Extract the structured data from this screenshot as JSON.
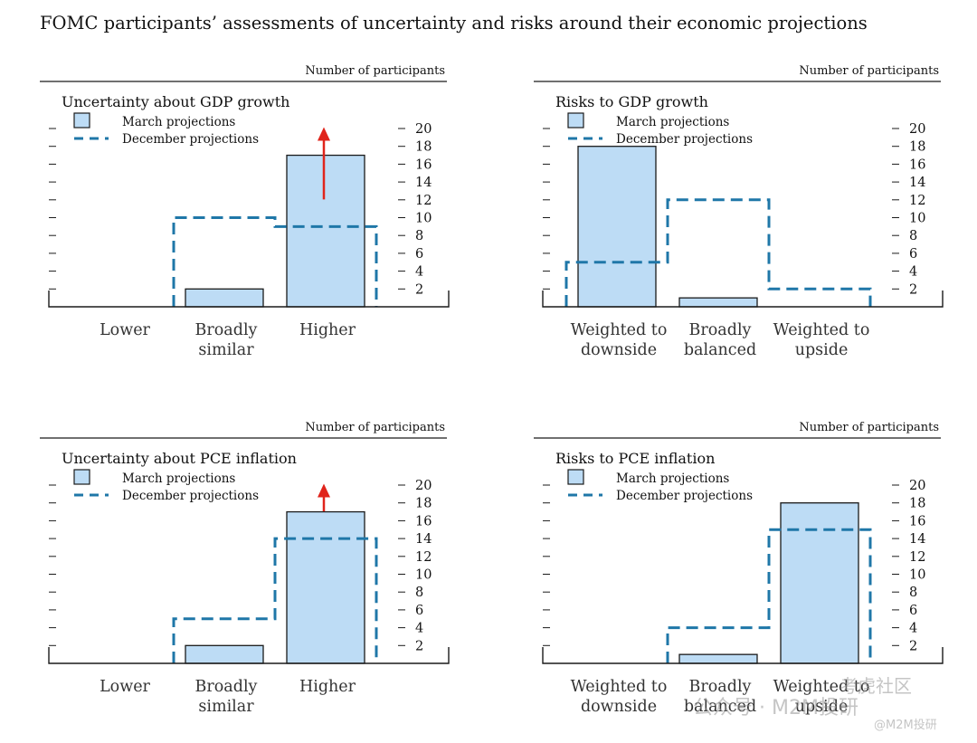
{
  "title": "FOMC participants’ assessments of uncertainty and risks around their economic projections",
  "legend": {
    "march": "March projections",
    "december": "December projections"
  },
  "colors": {
    "bar_fill": "#bddcf5",
    "bar_stroke": "#1a1a1a",
    "dec_line": "#1f77a8",
    "arrow": "#e0241b",
    "axis": "#1a1a1a"
  },
  "watermarks": {
    "community": "考虎社区",
    "account": "公众号 · M2M投研",
    "handle": "@M2M投研"
  },
  "chart_data": [
    {
      "type": "bar",
      "title": "Uncertainty about GDP growth",
      "unit_label": "Number of participants",
      "categories": [
        "Lower",
        "Broadly similar",
        "Higher"
      ],
      "category_lines": [
        [
          "Lower"
        ],
        [
          "Broadly",
          "similar"
        ],
        [
          "Higher"
        ]
      ],
      "series": [
        {
          "name": "March projections",
          "style": "bar",
          "values": [
            0,
            2,
            17
          ]
        },
        {
          "name": "December projections",
          "style": "dashed-step",
          "values": [
            0,
            10,
            9
          ]
        }
      ],
      "ylim": [
        0,
        20
      ],
      "yticks": [
        2,
        4,
        6,
        8,
        10,
        12,
        14,
        16,
        18,
        20
      ],
      "arrow_on": "Higher",
      "legend": "top-left"
    },
    {
      "type": "bar",
      "title": "Risks to GDP growth",
      "unit_label": "Number of participants",
      "categories": [
        "Weighted to downside",
        "Broadly balanced",
        "Weighted to upside"
      ],
      "category_lines": [
        [
          "Weighted to",
          "downside"
        ],
        [
          "Broadly",
          "balanced"
        ],
        [
          "Weighted to",
          "upside"
        ]
      ],
      "series": [
        {
          "name": "March projections",
          "style": "bar",
          "values": [
            18,
            1,
            0
          ]
        },
        {
          "name": "December projections",
          "style": "dashed-step",
          "values": [
            5,
            12,
            2
          ]
        }
      ],
      "ylim": [
        0,
        20
      ],
      "yticks": [
        2,
        4,
        6,
        8,
        10,
        12,
        14,
        16,
        18,
        20
      ],
      "arrow_on": null,
      "legend": "top-left"
    },
    {
      "type": "bar",
      "title": "Uncertainty about PCE inflation",
      "unit_label": "Number of participants",
      "categories": [
        "Lower",
        "Broadly similar",
        "Higher"
      ],
      "category_lines": [
        [
          "Lower"
        ],
        [
          "Broadly",
          "similar"
        ],
        [
          "Higher"
        ]
      ],
      "series": [
        {
          "name": "March projections",
          "style": "bar",
          "values": [
            0,
            2,
            17
          ]
        },
        {
          "name": "December projections",
          "style": "dashed-step",
          "values": [
            0,
            5,
            14
          ]
        }
      ],
      "ylim": [
        0,
        20
      ],
      "yticks": [
        2,
        4,
        6,
        8,
        10,
        12,
        14,
        16,
        18,
        20
      ],
      "arrow_on": "Higher",
      "legend": "top-left"
    },
    {
      "type": "bar",
      "title": "Risks to PCE inflation",
      "unit_label": "Number of participants",
      "categories": [
        "Weighted to downside",
        "Broadly balanced",
        "Weighted to upside"
      ],
      "category_lines": [
        [
          "Weighted to",
          "downside"
        ],
        [
          "Broadly",
          "balanced"
        ],
        [
          "Weighted to",
          "upside"
        ]
      ],
      "series": [
        {
          "name": "March projections",
          "style": "bar",
          "values": [
            0,
            1,
            18
          ]
        },
        {
          "name": "December projections",
          "style": "dashed-step",
          "values": [
            0,
            4,
            15
          ]
        }
      ],
      "ylim": [
        0,
        20
      ],
      "yticks": [
        2,
        4,
        6,
        8,
        10,
        12,
        14,
        16,
        18,
        20
      ],
      "arrow_on": null,
      "legend": "top-left"
    }
  ]
}
